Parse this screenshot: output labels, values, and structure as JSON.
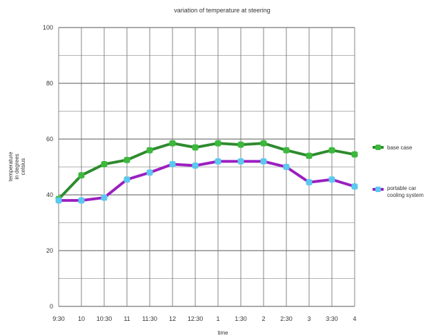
{
  "chart_data": {
    "type": "line",
    "title": "variation of temperature at steering",
    "xlabel": "time",
    "ylabel_lines": [
      "temperature",
      "in degrees",
      "celsius"
    ],
    "categories": [
      "9:30",
      "10",
      "10:30",
      "11",
      "11:30",
      "12",
      "12:30",
      "1",
      "1:30",
      "2",
      "2:30",
      "3",
      "3:30",
      "4"
    ],
    "ylim": [
      0,
      100
    ],
    "yticks": [
      0,
      20,
      40,
      60,
      80,
      100
    ],
    "grid": true,
    "legend_position": "right",
    "series": [
      {
        "name": "base case",
        "line_color": "#2e8b2e",
        "marker_color": "#3cb83c",
        "values": [
          38.5,
          47,
          51,
          52.5,
          56,
          58.5,
          57,
          58.5,
          58,
          58.5,
          56,
          54,
          56,
          54.5
        ]
      },
      {
        "name_lines": [
          "portable car",
          "cooling system"
        ],
        "line_color": "#9b1fc0",
        "marker_color": "#5bc8f0",
        "values": [
          38,
          38,
          39,
          45.5,
          48,
          51,
          50.5,
          52,
          52,
          52,
          50,
          44.5,
          45.5,
          43
        ]
      }
    ]
  }
}
